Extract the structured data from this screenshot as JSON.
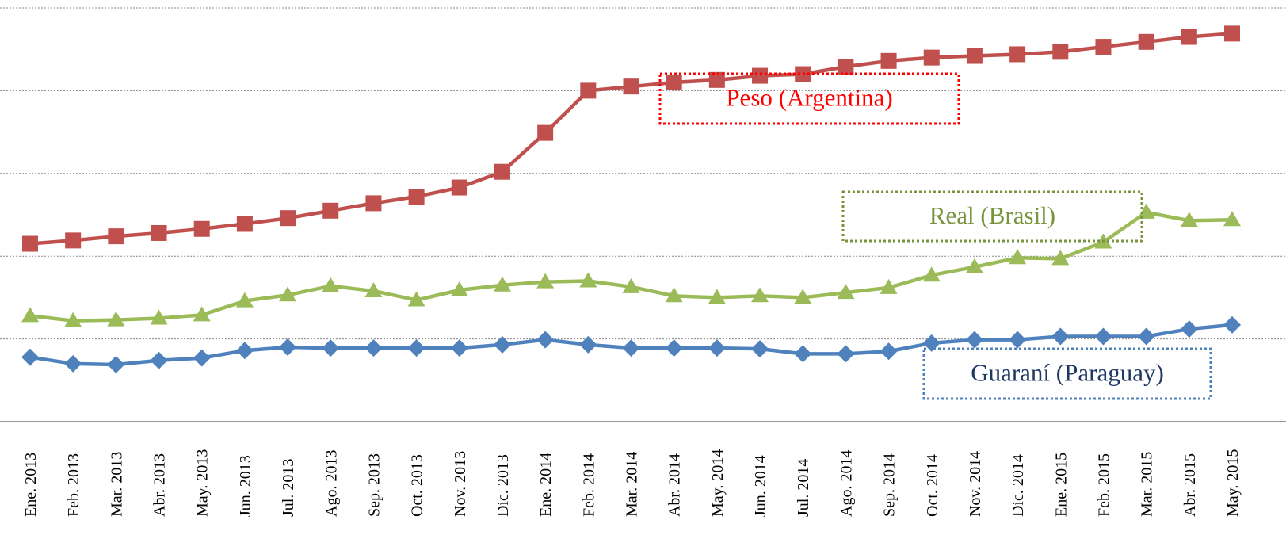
{
  "chart_data": {
    "type": "line",
    "categories": [
      "Ene. 2013",
      "Feb. 2013",
      "Mar. 2013",
      "Abr. 2013",
      "May. 2013",
      "Jun. 2013",
      "Jul. 2013",
      "Ago. 2013",
      "Sep. 2013",
      "Oct. 2013",
      "Nov. 2013",
      "Dic. 2013",
      "Ene. 2014",
      "Feb. 2014",
      "Mar. 2014",
      "Abr. 2014",
      "May. 2014",
      "Jun. 2014",
      "Jul. 2014",
      "Ago. 2014",
      "Sep. 2014",
      "Oct. 2014",
      "Nov. 2014",
      "Dic. 2014",
      "Ene. 2015",
      "Feb. 2015",
      "Mar. 2015",
      "Abr. 2015",
      "May. 2015"
    ],
    "series": [
      {
        "name": "Peso (Argentina)",
        "color": "#c0504d",
        "marker": "square",
        "values": [
          2.15,
          2.19,
          2.24,
          2.28,
          2.33,
          2.39,
          2.46,
          2.55,
          2.64,
          2.72,
          2.83,
          3.02,
          3.49,
          4.0,
          4.05,
          4.1,
          4.13,
          4.18,
          4.2,
          4.29,
          4.36,
          4.4,
          4.42,
          4.44,
          4.47,
          4.53,
          4.59,
          4.65,
          4.69
        ]
      },
      {
        "name": "Real (Brasil)",
        "color": "#9bbb59",
        "marker": "triangle",
        "values": [
          1.28,
          1.22,
          1.23,
          1.25,
          1.29,
          1.46,
          1.53,
          1.64,
          1.58,
          1.47,
          1.59,
          1.65,
          1.69,
          1.7,
          1.63,
          1.52,
          1.5,
          1.52,
          1.5,
          1.56,
          1.62,
          1.77,
          1.87,
          1.98,
          1.97,
          2.17,
          2.53,
          2.43,
          2.44
        ]
      },
      {
        "name": "Guaraní (Paraguay)",
        "color": "#4f81bd",
        "marker": "diamond",
        "values": [
          0.78,
          0.7,
          0.69,
          0.74,
          0.77,
          0.86,
          0.9,
          0.89,
          0.89,
          0.89,
          0.89,
          0.93,
          0.99,
          0.93,
          0.89,
          0.89,
          0.89,
          0.88,
          0.82,
          0.82,
          0.85,
          0.95,
          0.99,
          0.99,
          1.03,
          1.03,
          1.03,
          1.12,
          1.17
        ]
      }
    ],
    "ylim": [
      0,
      5
    ],
    "yticks": [
      1,
      2,
      3,
      4,
      5
    ],
    "grid": true
  }
}
